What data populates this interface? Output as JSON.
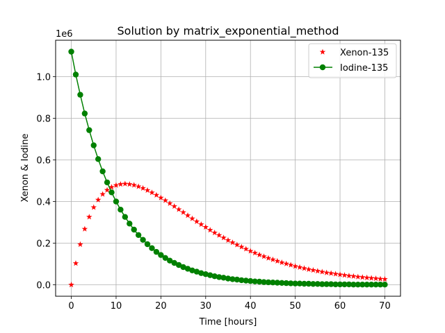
{
  "chart_data": {
    "type": "line",
    "title": "Solution by matrix_exponential_method",
    "xlabel": "Time [hours]",
    "ylabel": "Xenon & Iodine",
    "y_offset_label": "1e6",
    "xlim": [
      -3.5,
      73.5
    ],
    "ylim": [
      -55000,
      1175000
    ],
    "x_ticks": [
      0,
      10,
      20,
      30,
      40,
      50,
      60,
      70
    ],
    "x_tick_labels": [
      "0",
      "10",
      "20",
      "30",
      "40",
      "50",
      "60",
      "70"
    ],
    "y_ticks": [
      0,
      200000,
      400000,
      600000,
      800000,
      1000000
    ],
    "y_tick_labels": [
      "0.0",
      "0.2",
      "0.4",
      "0.6",
      "0.8",
      "1.0"
    ],
    "grid": true,
    "legend_position": "top-right",
    "series": [
      {
        "name": "Xenon-135",
        "color": "#ff0000",
        "marker": "star",
        "line": false,
        "x": [
          0,
          1,
          2,
          3,
          4,
          5,
          6,
          7,
          8,
          9,
          10,
          11,
          12,
          13,
          14,
          15,
          16,
          17,
          18,
          19,
          20,
          21,
          22,
          23,
          24,
          25,
          26,
          27,
          28,
          29,
          30,
          31,
          32,
          33,
          34,
          35,
          36,
          37,
          38,
          39,
          40,
          41,
          42,
          43,
          44,
          45,
          46,
          47,
          48,
          49,
          50,
          51,
          52,
          53,
          54,
          55,
          56,
          57,
          58,
          59,
          60,
          61,
          62,
          63,
          64,
          65,
          66,
          67,
          68,
          69,
          70
        ],
        "values": [
          0,
          103000,
          194000,
          268000,
          326000,
          372000,
          408000,
          435000,
          455000,
          469000,
          478000,
          483000,
          485000,
          483000,
          479000,
          472000,
          464000,
          454000,
          443000,
          431000,
          418000,
          405000,
          391000,
          377000,
          362000,
          348000,
          333000,
          318000,
          304000,
          290000,
          277000,
          263000,
          250000,
          238000,
          226000,
          214000,
          203000,
          192000,
          182000,
          172000,
          162000,
          153000,
          144000,
          136000,
          128000,
          121000,
          114000,
          107000,
          101000,
          95000,
          89000,
          84000,
          79000,
          74000,
          70000,
          66000,
          62000,
          58000,
          55000,
          52000,
          49000,
          46000,
          43000,
          41000,
          38000,
          36000,
          34000,
          32000,
          30000,
          28000,
          27000
        ]
      },
      {
        "name": "Iodine-135",
        "color": "#008000",
        "marker": "circle",
        "line": true,
        "x": [
          0,
          1,
          2,
          3,
          4,
          5,
          6,
          7,
          8,
          9,
          10,
          11,
          12,
          13,
          14,
          15,
          16,
          17,
          18,
          19,
          20,
          21,
          22,
          23,
          24,
          25,
          26,
          27,
          28,
          29,
          30,
          31,
          32,
          33,
          34,
          35,
          36,
          37,
          38,
          39,
          40,
          41,
          42,
          43,
          44,
          45,
          46,
          47,
          48,
          49,
          50,
          51,
          52,
          53,
          54,
          55,
          56,
          57,
          58,
          59,
          60,
          61,
          62,
          63,
          64,
          65,
          66,
          67,
          68,
          69,
          70
        ],
        "values": [
          1120000,
          1010000,
          913000,
          823000,
          743000,
          670000,
          604000,
          545000,
          492000,
          444000,
          400000,
          361000,
          326000,
          294000,
          265000,
          239000,
          216000,
          195000,
          176000,
          158000,
          143000,
          129000,
          116000,
          105000,
          95000,
          85000,
          77000,
          69000,
          63000,
          56000,
          51000,
          46000,
          41000,
          37000,
          34000,
          30000,
          27000,
          25000,
          22000,
          20000,
          18000,
          16000,
          15000,
          13000,
          12000,
          11000,
          10000,
          9000,
          8000,
          7000,
          6000,
          6000,
          5000,
          5000,
          4000,
          4000,
          3000,
          3000,
          3000,
          2000,
          2000,
          2000,
          2000,
          1000,
          1000,
          1000,
          1000,
          1000,
          1000,
          1000,
          1000
        ]
      }
    ]
  }
}
